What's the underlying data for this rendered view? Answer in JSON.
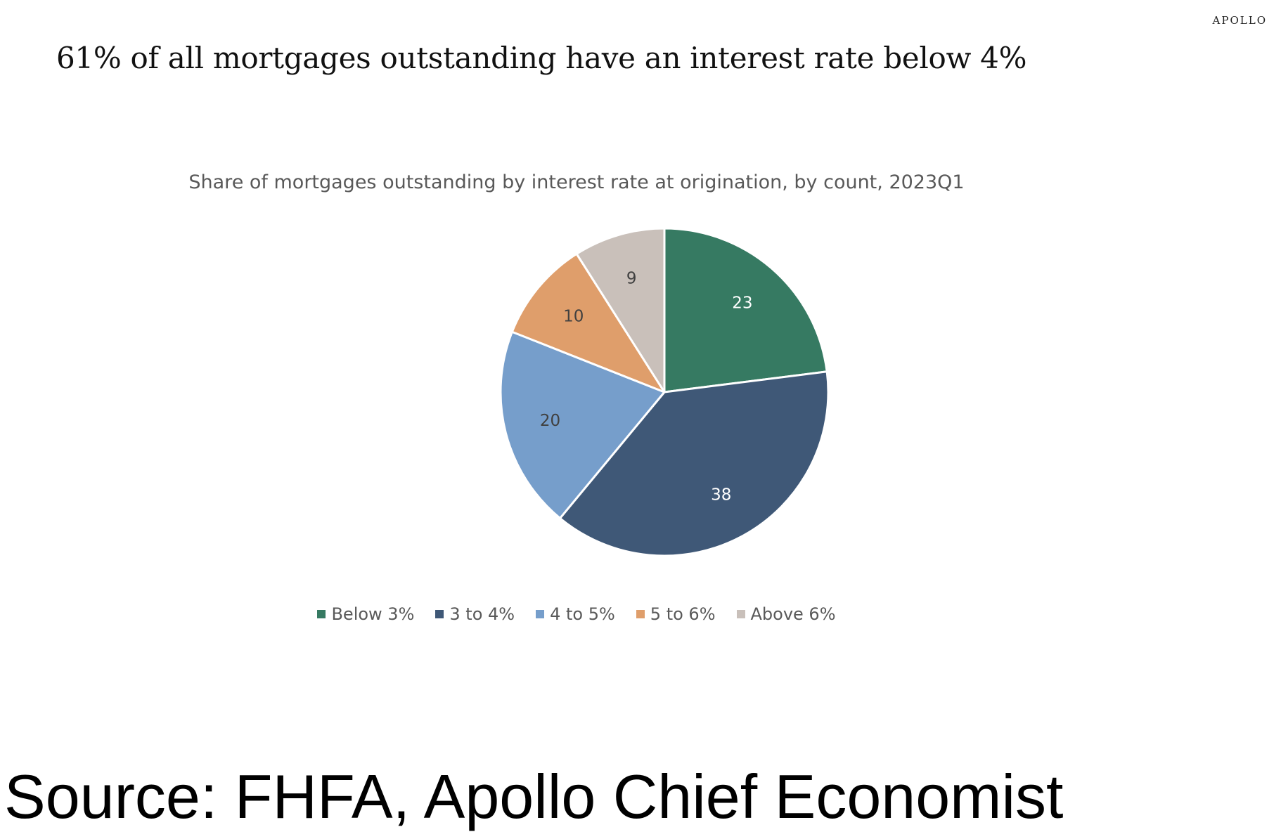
{
  "brand": "APOLLO",
  "headline": "61% of all mortgages outstanding have an interest rate below 4%",
  "source": "Source: FHFA, Apollo Chief Economist",
  "chart_data": {
    "type": "pie",
    "title": "Share of mortgages outstanding by interest rate at origination, by count, 2023Q1",
    "categories": [
      "Below 3%",
      "3 to 4%",
      "4 to 5%",
      "5 to 6%",
      "Above 6%"
    ],
    "values": [
      23,
      38,
      20,
      10,
      9
    ],
    "data_labels": [
      "23",
      "38",
      "20",
      "10",
      "9"
    ],
    "colors": [
      "#367A62",
      "#3F5877",
      "#769ECB",
      "#DF9E6B",
      "#C9C0BA"
    ],
    "label_colors": [
      "#ffffff",
      "#ffffff",
      "#404040",
      "#404040",
      "#404040"
    ],
    "start_angle_deg": 0,
    "direction": "clockwise",
    "legend_position": "bottom"
  }
}
